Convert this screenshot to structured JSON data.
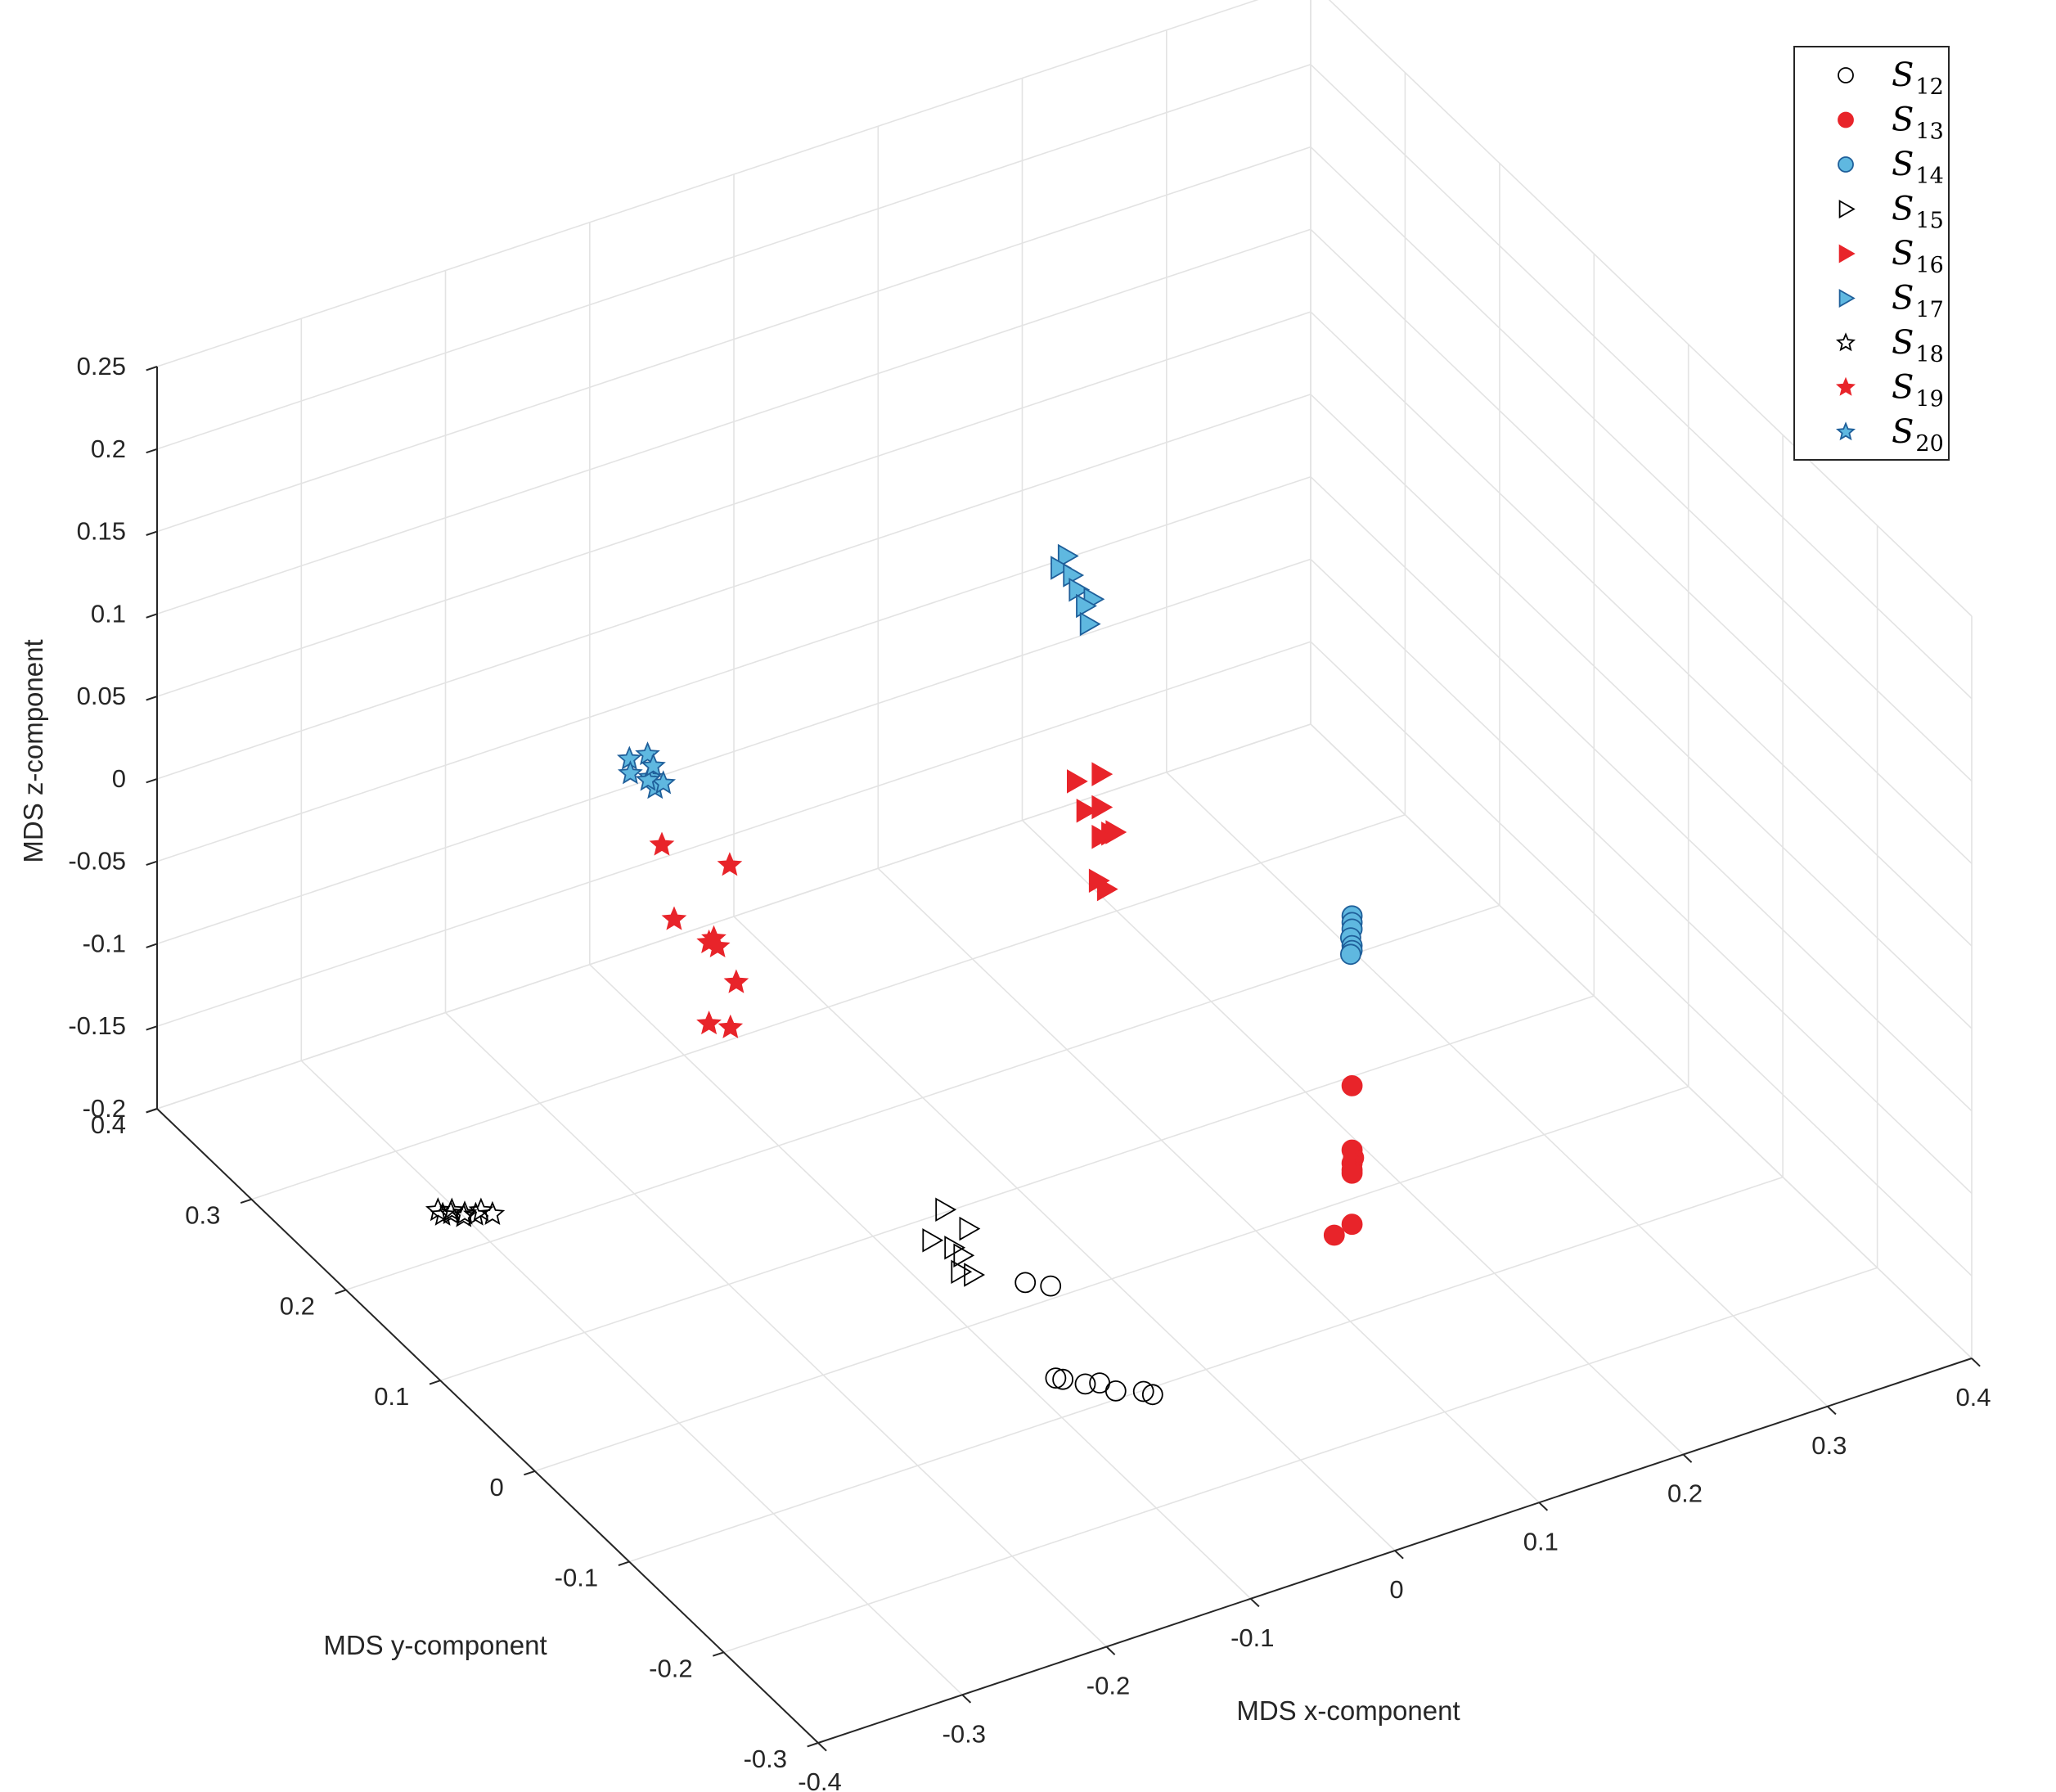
{
  "chart_data": {
    "type": "scatter3d",
    "title": "",
    "xlabel": "MDS x-component",
    "ylabel": "MDS y-component",
    "zlabel": "MDS z-component",
    "xlim": [
      -0.4,
      0.4
    ],
    "ylim": [
      -0.3,
      0.4
    ],
    "zlim": [
      -0.2,
      0.25
    ],
    "x_ticks": [
      -0.4,
      -0.3,
      -0.2,
      -0.1,
      0,
      0.1,
      0.2,
      0.3,
      0.4
    ],
    "x_tick_labels": [
      "-0.4",
      "-0.3",
      "-0.2",
      "-0.1",
      "0",
      "0.1",
      "0.2",
      "0.3",
      "0.4"
    ],
    "y_ticks": [
      -0.3,
      -0.2,
      -0.1,
      0,
      0.1,
      0.2,
      0.3,
      0.4
    ],
    "y_tick_labels": [
      "-0.3",
      "-0.2",
      "-0.1",
      "0",
      "0.1",
      "0.2",
      "0.3",
      "0.4"
    ],
    "z_ticks": [
      -0.2,
      -0.15,
      -0.1,
      -0.05,
      0,
      0.05,
      0.1,
      0.15,
      0.2,
      0.25
    ],
    "z_tick_labels": [
      "-0.2",
      "-0.15",
      "-0.1",
      "-0.05",
      "0",
      "0.05",
      "0.1",
      "0.15",
      "0.2",
      "0.25"
    ],
    "grid": true,
    "legend_position": "top-right",
    "series": [
      {
        "name": "S",
        "sub": "12",
        "marker": "circle",
        "fill": "none",
        "stroke": "#000000",
        "points": [
          [
            -0.088,
            -0.043,
            -0.153
          ],
          [
            -0.075,
            -0.05,
            -0.155
          ],
          [
            -0.082,
            -0.066,
            -0.2
          ],
          [
            -0.079,
            -0.069,
            -0.2
          ],
          [
            -0.07,
            -0.079,
            -0.2
          ],
          [
            -0.062,
            -0.082,
            -0.2
          ],
          [
            -0.058,
            -0.093,
            -0.2
          ],
          [
            -0.044,
            -0.101,
            -0.2
          ],
          [
            -0.041,
            -0.106,
            -0.2
          ]
        ]
      },
      {
        "name": "S",
        "sub": "13",
        "marker": "circle",
        "fill": "#e8242a",
        "stroke": "#e8242a",
        "points": [
          [
            0.153,
            -0.021,
            -0.116
          ],
          [
            0.153,
            -0.021,
            -0.155
          ],
          [
            0.154,
            -0.021,
            -0.16
          ],
          [
            0.153,
            -0.021,
            -0.163
          ],
          [
            0.153,
            -0.021,
            -0.167
          ],
          [
            0.153,
            -0.021,
            -0.169
          ],
          [
            0.153,
            -0.021,
            -0.2
          ],
          [
            0.138,
            -0.025,
            -0.2
          ]
        ]
      },
      {
        "name": "S",
        "sub": "14",
        "marker": "circle",
        "fill": "#5fb8e0",
        "stroke": "#1f5f9a",
        "points": [
          [
            0.153,
            -0.021,
            -0.013
          ],
          [
            0.153,
            -0.021,
            -0.017
          ],
          [
            0.153,
            -0.021,
            -0.021
          ],
          [
            0.152,
            -0.021,
            -0.026
          ],
          [
            0.153,
            -0.021,
            -0.031
          ],
          [
            0.153,
            -0.021,
            -0.034
          ],
          [
            0.152,
            -0.021,
            -0.036
          ]
        ]
      },
      {
        "name": "S",
        "sub": "15",
        "marker": "triangle",
        "fill": "none",
        "stroke": "#000000",
        "points": [
          [
            -0.103,
            0.02,
            -0.139
          ],
          [
            -0.093,
            0.01,
            -0.148
          ],
          [
            -0.112,
            0.02,
            -0.155
          ],
          [
            -0.102,
            0.012,
            -0.158
          ],
          [
            -0.097,
            0.01,
            -0.163
          ],
          [
            -0.1,
            0.008,
            -0.171
          ],
          [
            -0.095,
            0.002,
            -0.171
          ]
        ]
      },
      {
        "name": "S",
        "sub": "16",
        "marker": "triangle",
        "fill": "#e8242a",
        "stroke": "#e8242a",
        "points": [
          [
            -0.002,
            0.035,
            0.083
          ],
          [
            0.012,
            0.03,
            0.086
          ],
          [
            0.004,
            0.034,
            0.064
          ],
          [
            0.012,
            0.03,
            0.066
          ],
          [
            0.016,
            0.026,
            0.051
          ],
          [
            0.019,
            0.026,
            0.051
          ],
          [
            0.012,
            0.03,
            0.048
          ],
          [
            0.01,
            0.03,
            0.022
          ],
          [
            0.015,
            0.029,
            0.016
          ]
        ]
      },
      {
        "name": "S",
        "sub": "17",
        "marker": "triangle",
        "fill": "#5fb8e0",
        "stroke": "#1f5f9a",
        "points": [
          [
            -0.007,
            0.037,
            0.22
          ],
          [
            -0.01,
            0.04,
            0.212
          ],
          [
            -0.004,
            0.036,
            0.208
          ],
          [
            0.0,
            0.036,
            0.198
          ],
          [
            0.007,
            0.031,
            0.193
          ],
          [
            0.003,
            0.033,
            0.189
          ],
          [
            0.005,
            0.032,
            0.178
          ]
        ]
      },
      {
        "name": "S",
        "sub": "18",
        "marker": "star",
        "fill": "none",
        "stroke": "#000000",
        "points": [
          [
            -0.31,
            0.24,
            -0.2
          ],
          [
            -0.31,
            0.235,
            -0.2
          ],
          [
            -0.305,
            0.234,
            -0.2
          ],
          [
            -0.3,
            0.228,
            -0.2
          ],
          [
            -0.298,
            0.23,
            -0.2
          ],
          [
            -0.293,
            0.226,
            -0.2
          ],
          [
            -0.288,
            0.228,
            -0.2
          ],
          [
            -0.284,
            0.222,
            -0.2
          ],
          [
            -0.303,
            0.236,
            -0.2
          ]
        ]
      },
      {
        "name": "S",
        "sub": "19",
        "marker": "star",
        "fill": "#e8242a",
        "stroke": "#e8242a",
        "points": [
          [
            -0.196,
            0.177,
            0.023
          ],
          [
            -0.164,
            0.154,
            0.014
          ],
          [
            -0.196,
            0.164,
            -0.015
          ],
          [
            -0.177,
            0.151,
            -0.025
          ],
          [
            -0.179,
            0.153,
            -0.028
          ],
          [
            -0.175,
            0.15,
            -0.03
          ],
          [
            -0.166,
            0.144,
            -0.051
          ],
          [
            -0.181,
            0.15,
            -0.075
          ],
          [
            -0.172,
            0.141,
            -0.075
          ]
        ]
      },
      {
        "name": "S",
        "sub": "20",
        "marker": "star",
        "fill": "#5fb8e0",
        "stroke": "#1f5f9a",
        "points": [
          [
            -0.21,
            0.19,
            0.072
          ],
          [
            -0.2,
            0.186,
            0.074
          ],
          [
            -0.212,
            0.186,
            0.066
          ],
          [
            -0.202,
            0.18,
            0.064
          ],
          [
            -0.2,
            0.178,
            0.058
          ],
          [
            -0.195,
            0.177,
            0.06
          ],
          [
            -0.203,
            0.181,
            0.062
          ],
          [
            -0.198,
            0.183,
            0.068
          ]
        ]
      }
    ]
  }
}
